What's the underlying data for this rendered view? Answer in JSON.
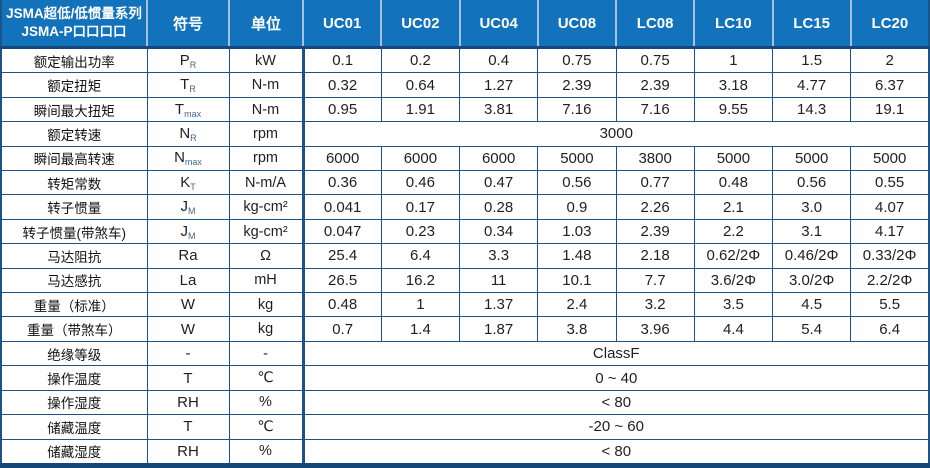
{
  "table": {
    "title_line1": "JSMA超低/低惯量系列",
    "title_line2": "JSMA-P口口口口",
    "columns": {
      "symbol": "符号",
      "unit": "单位"
    },
    "models": [
      "UC01",
      "UC02",
      "UC04",
      "UC08",
      "LC08",
      "LC10",
      "LC15",
      "LC20"
    ],
    "rows": [
      {
        "label": "额定输出功率",
        "symbol": {
          "base": "P",
          "sub": "R"
        },
        "unit": "kW",
        "values": [
          "0.1",
          "0.2",
          "0.4",
          "0.75",
          "0.75",
          "1",
          "1.5",
          "2"
        ]
      },
      {
        "label": "额定扭矩",
        "symbol": {
          "base": "T",
          "sub": "R"
        },
        "unit": "N-m",
        "values": [
          "0.32",
          "0.64",
          "1.27",
          "2.39",
          "2.39",
          "3.18",
          "4.77",
          "6.37"
        ]
      },
      {
        "label": "瞬间最大扭矩",
        "symbol": {
          "base": "T",
          "sub": "max"
        },
        "unit": "N-m",
        "values": [
          "0.95",
          "1.91",
          "3.81",
          "7.16",
          "7.16",
          "9.55",
          "14.3",
          "19.1"
        ]
      },
      {
        "label": "额定转速",
        "symbol": {
          "base": "N",
          "sub": "R"
        },
        "unit": "rpm",
        "merged": "3000"
      },
      {
        "label": "瞬间最高转速",
        "symbol": {
          "base": "N",
          "sub": "max"
        },
        "unit": "rpm",
        "values": [
          "6000",
          "6000",
          "6000",
          "5000",
          "3800",
          "5000",
          "5000",
          "5000"
        ]
      },
      {
        "label": "转矩常数",
        "symbol": {
          "base": "K",
          "sub": "T"
        },
        "unit": "N-m/A",
        "values": [
          "0.36",
          "0.46",
          "0.47",
          "0.56",
          "0.77",
          "0.48",
          "0.56",
          "0.55"
        ]
      },
      {
        "label": "转子惯量",
        "symbol": {
          "base": "J",
          "sub": "M"
        },
        "unit": "kg-cm²",
        "values": [
          "0.041",
          "0.17",
          "0.28",
          "0.9",
          "2.26",
          "2.1",
          "3.0",
          "4.07"
        ]
      },
      {
        "label": "转子惯量(带煞车)",
        "symbol": {
          "base": "J",
          "sub": "M"
        },
        "unit": "kg-cm²",
        "values": [
          "0.047",
          "0.23",
          "0.34",
          "1.03",
          "2.39",
          "2.2",
          "3.1",
          "4.17"
        ]
      },
      {
        "label": "马达阻抗",
        "symbol": {
          "base": "Ra",
          "sub": ""
        },
        "unit": "Ω",
        "values": [
          "25.4",
          "6.4",
          "3.3",
          "1.48",
          "2.18",
          "0.62/2Φ",
          "0.46/2Φ",
          "0.33/2Φ"
        ]
      },
      {
        "label": "马达感抗",
        "symbol": {
          "base": "La",
          "sub": ""
        },
        "unit": "mH",
        "values": [
          "26.5",
          "16.2",
          "11",
          "10.1",
          "7.7",
          "3.6/2Φ",
          "3.0/2Φ",
          "2.2/2Φ"
        ]
      },
      {
        "label": "重量（标准）",
        "symbol": {
          "base": "W",
          "sub": ""
        },
        "unit": "kg",
        "values": [
          "0.48",
          "1",
          "1.37",
          "2.4",
          "3.2",
          "3.5",
          "4.5",
          "5.5"
        ]
      },
      {
        "label": "重量（带煞车）",
        "symbol": {
          "base": "W",
          "sub": ""
        },
        "unit": "kg",
        "values": [
          "0.7",
          "1.4",
          "1.87",
          "3.8",
          "3.96",
          "4.4",
          "5.4",
          "6.4"
        ]
      },
      {
        "label": "绝缘等级",
        "symbol": {
          "base": "-",
          "sub": ""
        },
        "unit": "-",
        "merged": "ClassF"
      },
      {
        "label": "操作温度",
        "symbol": {
          "base": "T",
          "sub": ""
        },
        "unit": "℃",
        "merged": "0 ~ 40"
      },
      {
        "label": "操作湿度",
        "symbol": {
          "base": "RH",
          "sub": ""
        },
        "unit": "%",
        "merged": "< 80"
      },
      {
        "label": "储藏温度",
        "symbol": {
          "base": "T",
          "sub": ""
        },
        "unit": "℃",
        "merged": "-20 ~ 60"
      },
      {
        "label": "储藏湿度",
        "symbol": {
          "base": "RH",
          "sub": ""
        },
        "unit": "%",
        "merged": "< 80"
      }
    ]
  },
  "colors": {
    "header_bg": "#1272bc",
    "header_divider": "#a9c0dc",
    "grid": "#1c5488",
    "outer_border": "#16477a",
    "body_text": "#1f1f1f"
  }
}
